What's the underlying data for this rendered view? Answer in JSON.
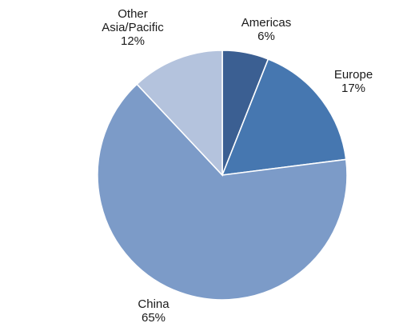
{
  "chart_data": {
    "type": "pie",
    "slices": [
      {
        "label_lines": [
          "Americas"
        ],
        "pct_label": "6%",
        "value": 6,
        "color": "#3b5f92"
      },
      {
        "label_lines": [
          "Europe"
        ],
        "pct_label": "17%",
        "value": 17,
        "color": "#4677b0"
      },
      {
        "label_lines": [
          "China"
        ],
        "pct_label": "65%",
        "value": 65,
        "color": "#7c9bc8"
      },
      {
        "label_lines": [
          "Other",
          "Asia/Pacific"
        ],
        "pct_label": "12%",
        "value": 12,
        "color": "#b4c3dd"
      }
    ]
  }
}
